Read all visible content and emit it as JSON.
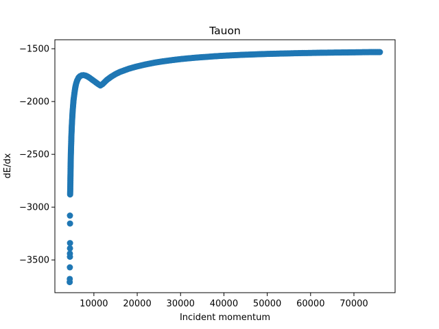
{
  "chart_data": {
    "type": "scatter",
    "title": "Tauon",
    "xlabel": "Incident momentum",
    "ylabel": "dE/dx",
    "xlim": [
      1000,
      79500
    ],
    "ylim": [
      -3810,
      -1415
    ],
    "x_ticks": [
      10000,
      20000,
      30000,
      40000,
      50000,
      60000,
      70000
    ],
    "x_tick_labels": [
      "10000",
      "20000",
      "30000",
      "40000",
      "50000",
      "60000",
      "70000"
    ],
    "y_ticks": [
      -3500,
      -3000,
      -2500,
      -2000,
      -1500
    ],
    "y_tick_labels": [
      "−3500",
      "−3000",
      "−2500",
      "−2000",
      "−1500"
    ],
    "grid": false,
    "marker_color": "#1f77b4",
    "series": [
      {
        "points": [
          [
            4420,
            -3710
          ],
          [
            4440,
            -3680
          ],
          [
            4460,
            -3570
          ],
          [
            4480,
            -3470
          ],
          [
            4470,
            -3440
          ],
          [
            4490,
            -3390
          ],
          [
            4500,
            -3340
          ],
          [
            4500,
            -3155
          ],
          [
            4480,
            -3080
          ],
          [
            4520,
            -2880
          ],
          [
            4540,
            -2840
          ],
          [
            4560,
            -2800
          ],
          [
            4580,
            -2760
          ],
          [
            4600,
            -2700
          ],
          [
            4620,
            -2640
          ],
          [
            4650,
            -2580
          ],
          [
            4680,
            -2510
          ],
          [
            4720,
            -2450
          ],
          [
            4760,
            -2400
          ],
          [
            4800,
            -2340
          ],
          [
            4850,
            -2290
          ],
          [
            4900,
            -2240
          ],
          [
            4960,
            -2190
          ],
          [
            5030,
            -2140
          ],
          [
            5100,
            -2090
          ],
          [
            5200,
            -2040
          ],
          [
            5300,
            -1990
          ],
          [
            5420,
            -1950
          ],
          [
            5550,
            -1910
          ],
          [
            5700,
            -1870
          ],
          [
            5900,
            -1830
          ],
          [
            6150,
            -1800
          ],
          [
            6450,
            -1775
          ],
          [
            6800,
            -1760
          ],
          [
            7200,
            -1752
          ],
          [
            7600,
            -1750
          ],
          [
            8000,
            -1753
          ],
          [
            8500,
            -1762
          ],
          [
            9000,
            -1775
          ],
          [
            9500,
            -1790
          ],
          [
            10000,
            -1805
          ],
          [
            10500,
            -1820
          ],
          [
            11000,
            -1835
          ],
          [
            11500,
            -1848
          ],
          [
            12000,
            -1835
          ],
          [
            12500,
            -1815
          ],
          [
            13000,
            -1795
          ],
          [
            14000,
            -1765
          ],
          [
            15000,
            -1740
          ],
          [
            16000,
            -1720
          ],
          [
            17000,
            -1705
          ],
          [
            18000,
            -1690
          ],
          [
            19000,
            -1678
          ],
          [
            20000,
            -1667
          ],
          [
            22000,
            -1648
          ],
          [
            24000,
            -1632
          ],
          [
            26000,
            -1619
          ],
          [
            28000,
            -1608
          ],
          [
            30000,
            -1598
          ],
          [
            32000,
            -1590
          ],
          [
            34000,
            -1583
          ],
          [
            36000,
            -1577
          ],
          [
            38000,
            -1571
          ],
          [
            40000,
            -1566
          ],
          [
            42000,
            -1562
          ],
          [
            44000,
            -1558
          ],
          [
            46000,
            -1555
          ],
          [
            48000,
            -1552
          ],
          [
            50000,
            -1549
          ],
          [
            52000,
            -1547
          ],
          [
            54000,
            -1545
          ],
          [
            56000,
            -1543
          ],
          [
            58000,
            -1541
          ],
          [
            60000,
            -1540
          ],
          [
            62000,
            -1538
          ],
          [
            64000,
            -1537
          ],
          [
            66000,
            -1536
          ],
          [
            68000,
            -1535
          ],
          [
            70000,
            -1534
          ],
          [
            72000,
            -1533
          ],
          [
            74000,
            -1532
          ],
          [
            76000,
            -1532
          ]
        ]
      }
    ]
  }
}
